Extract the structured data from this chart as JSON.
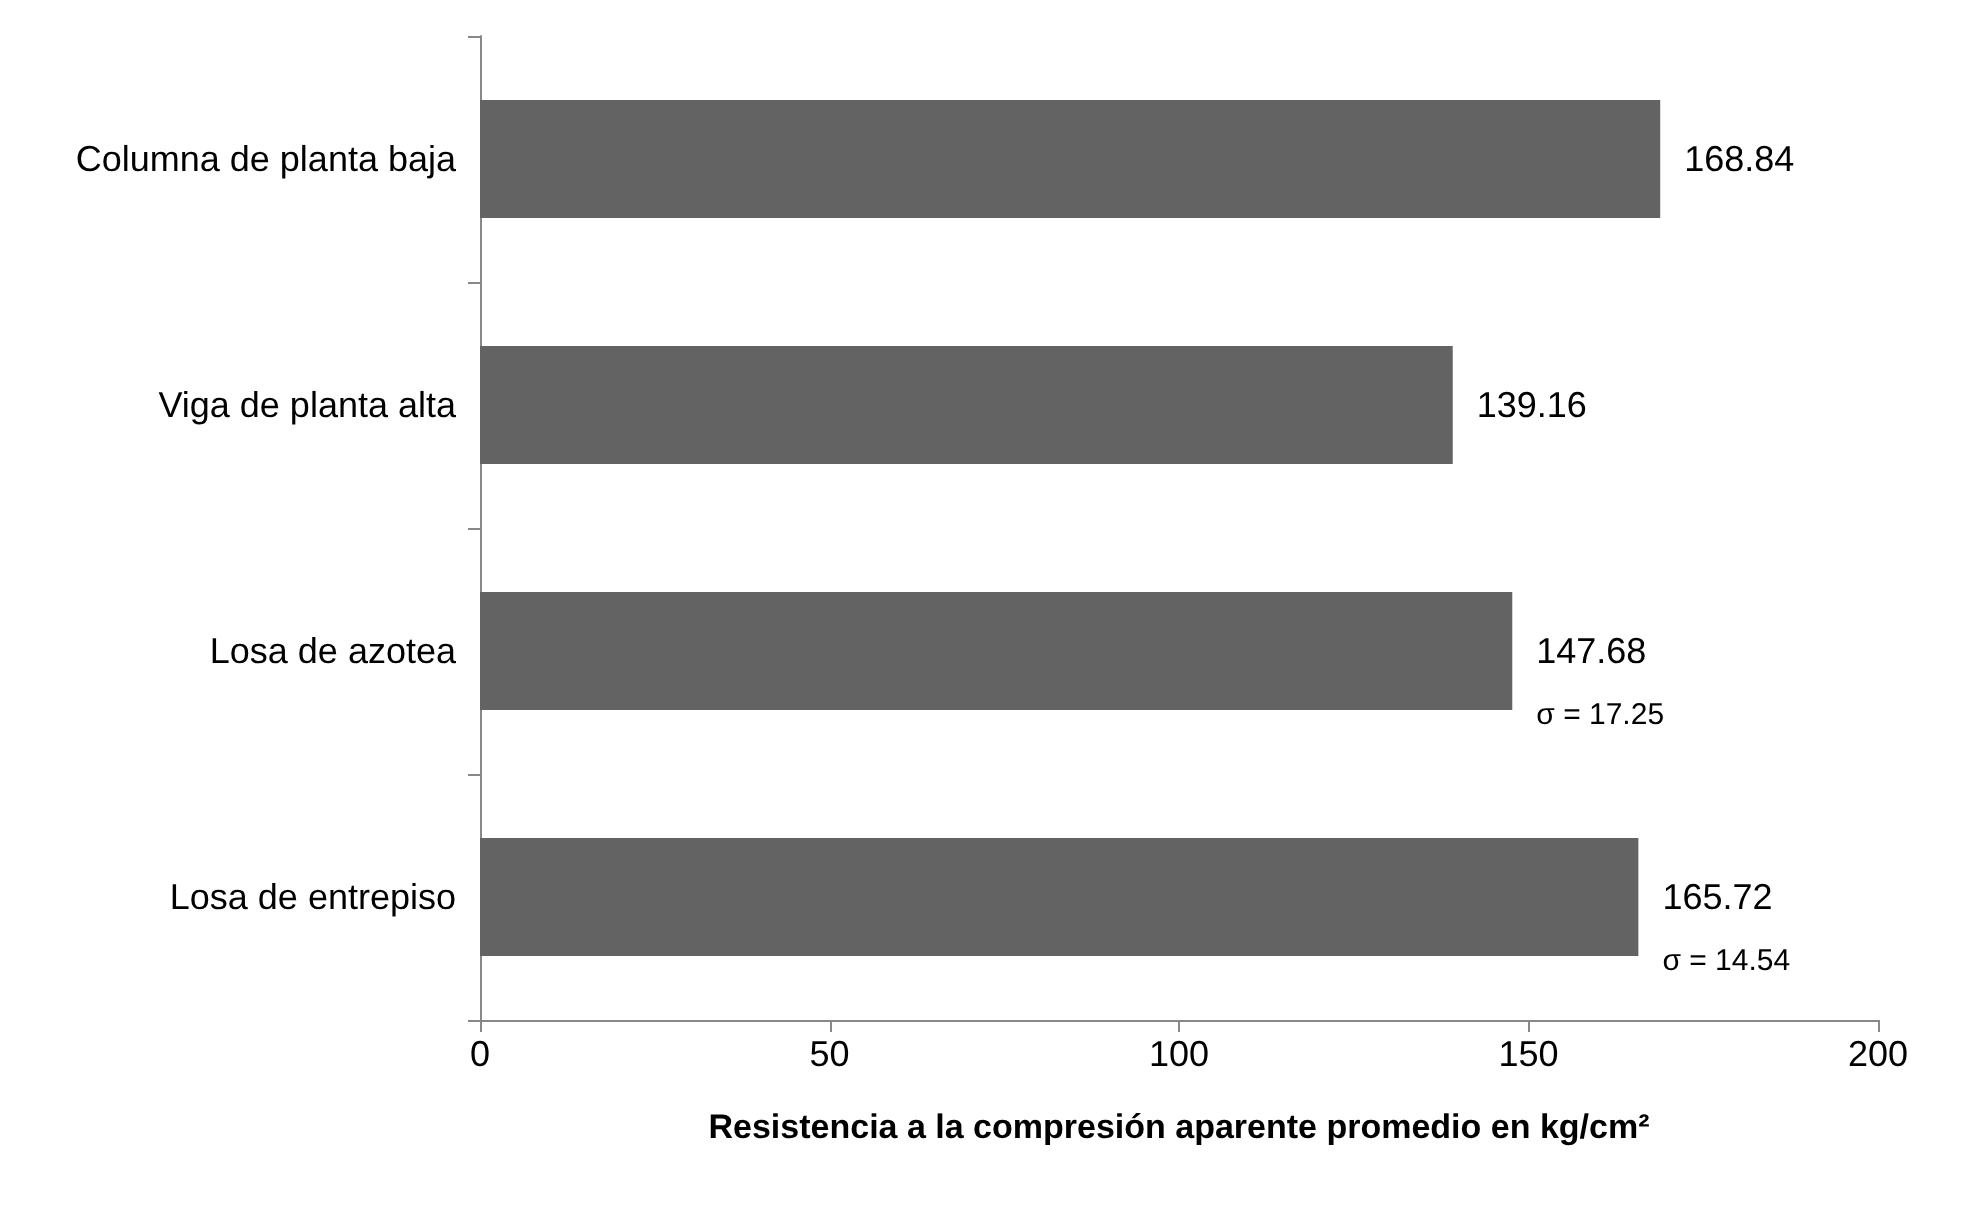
{
  "chart_data": {
    "type": "bar",
    "orientation": "horizontal",
    "categories": [
      "Columna de planta baja",
      "Viga de planta alta",
      "Losa de azotea",
      "Losa de entrepiso"
    ],
    "values": [
      168.84,
      139.16,
      147.68,
      165.72
    ],
    "color": "#636363",
    "data_labels": true,
    "xlim": [
      0,
      200
    ],
    "xticks": [
      0,
      50,
      100,
      150,
      200
    ],
    "grid": false,
    "xlabel": "Resistencia a la compresión aparente promedio en kg/cm²",
    "annotations": [
      {
        "text": "σ = 17.25",
        "x": 147.68,
        "y": "Losa de azotea"
      },
      {
        "text": "σ = 14.54",
        "x": 165.72,
        "y": "Losa de entrepiso"
      }
    ]
  }
}
